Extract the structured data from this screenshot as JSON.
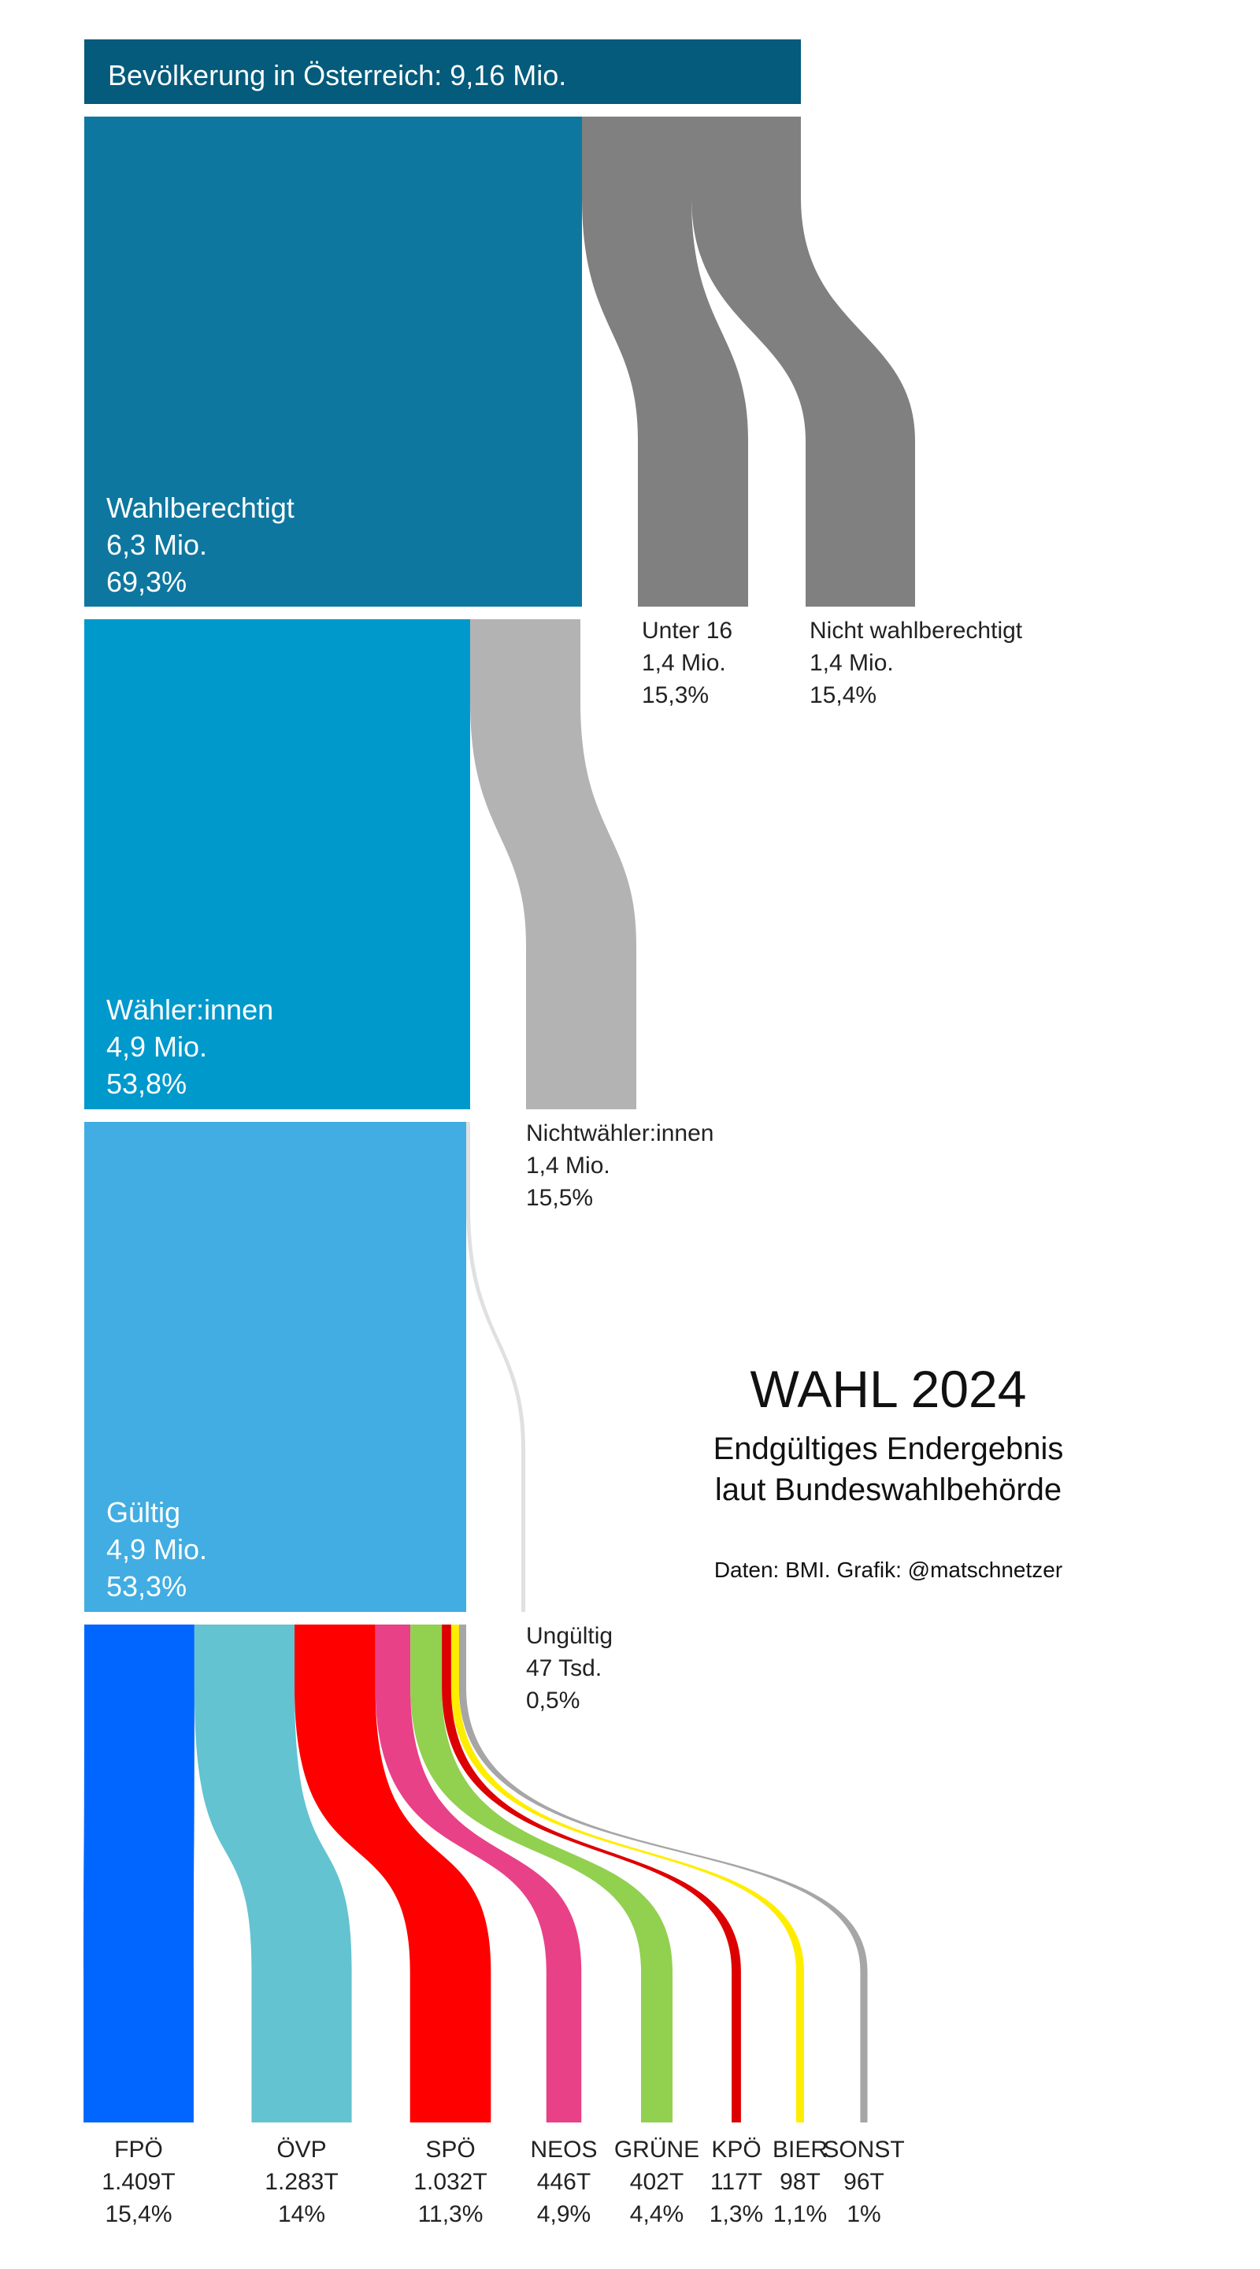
{
  "chart_data": {
    "type": "sankey",
    "header": "Bevölkerung in Österreich: 9,16 Mio.",
    "title": "WAHL 2024",
    "subtitle": [
      "Endgültiges Endergebnis",
      "laut Bundeswahlbehörde"
    ],
    "source": "Daten: BMI. Grafik: @matschnetzer",
    "stages": [
      {
        "name": "Wahlberechtigt",
        "value": "6,3 Mio.",
        "percent": "69,3%",
        "color": "#0e77a0"
      },
      {
        "name": "Wähler:innen",
        "value": "4,9 Mio.",
        "percent": "53,8%",
        "color": "#0099cc"
      },
      {
        "name": "Gültig",
        "value": "4,9 Mio.",
        "percent": "53,3%",
        "color": "#41ade2"
      }
    ],
    "dropouts": [
      {
        "name": "Unter 16",
        "value": "1,4 Mio.",
        "percent": "15,3%",
        "color": "#808080"
      },
      {
        "name": "Nicht wahlberechtigt",
        "value": "1,4 Mio.",
        "percent": "15,4%",
        "color": "#808080"
      },
      {
        "name": "Nichtwähler:innen",
        "value": "1,4 Mio.",
        "percent": "15,5%",
        "color": "#b3b3b3"
      },
      {
        "name": "Ungültig",
        "value": "47 Tsd.",
        "percent": "0,5%",
        "color": "#e0e0e0"
      }
    ],
    "parties": [
      {
        "name": "FPÖ",
        "votes": "1.409T",
        "percent": "15,4%",
        "share": 15.4,
        "color": "#0066ff"
      },
      {
        "name": "ÖVP",
        "votes": "1.283T",
        "percent": "14%",
        "share": 14.0,
        "color": "#63c3d0"
      },
      {
        "name": "SPÖ",
        "votes": "1.032T",
        "percent": "11,3%",
        "share": 11.3,
        "color": "#ff0000"
      },
      {
        "name": "NEOS",
        "votes": "446T",
        "percent": "4,9%",
        "share": 4.9,
        "color": "#e84188"
      },
      {
        "name": "GRÜNE",
        "votes": "402T",
        "percent": "4,4%",
        "share": 4.4,
        "color": "#92d050"
      },
      {
        "name": "KPÖ",
        "votes": "117T",
        "percent": "1,3%",
        "share": 1.3,
        "color": "#dd0000"
      },
      {
        "name": "BIER",
        "votes": "98T",
        "percent": "1,1%",
        "share": 1.1,
        "color": "#ffed00"
      },
      {
        "name": "SONST",
        "votes": "96T",
        "percent": "1%",
        "share": 1.0,
        "color": "#a6a6a6"
      }
    ]
  }
}
